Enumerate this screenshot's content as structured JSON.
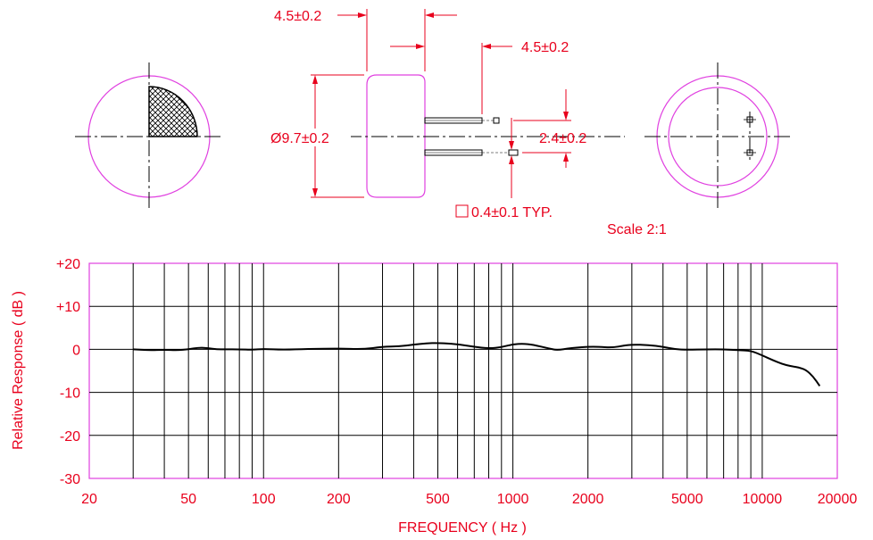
{
  "drawing": {
    "dims": {
      "top_left": "4.5±0.2",
      "top_right": "4.5±0.2",
      "diameter": "Ø9.7±0.2",
      "pin_spacing": "2.4±0.2",
      "pin_size": "0.4±0.1 TYP."
    },
    "scale_note": "Scale 2:1",
    "colors": {
      "dimension": "#e8001c",
      "outline": "#e040e0",
      "line": "#000000"
    }
  },
  "chart_data": {
    "type": "line",
    "title": "",
    "xlabel": "FREQUENCY ( Hz )",
    "ylabel": "Relative Response ( dB )",
    "x_scale": "log",
    "xlim": [
      20,
      20000
    ],
    "ylim": [
      -30,
      20
    ],
    "x_ticks": [
      20,
      50,
      100,
      200,
      500,
      1000,
      2000,
      5000,
      10000,
      20000
    ],
    "x_tick_labels": [
      "20",
      "50",
      "100",
      "200",
      "500",
      "1000",
      "2000",
      "5000",
      "10000",
      "20000"
    ],
    "y_ticks": [
      20,
      10,
      0,
      -10,
      -20,
      -30
    ],
    "y_tick_labels": [
      "+20",
      "+10",
      "0",
      "-10",
      "-20",
      "-30"
    ],
    "grid": true,
    "series": [
      {
        "x": [
          30,
          35,
          40,
          45,
          50,
          55,
          60,
          65,
          70,
          80,
          90,
          100,
          120,
          150,
          200,
          250,
          300,
          350,
          400,
          450,
          500,
          600,
          700,
          800,
          900,
          1000,
          1100,
          1200,
          1400,
          1500,
          1700,
          2000,
          2200,
          2500,
          2800,
          3000,
          3500,
          4000,
          4500,
          5000,
          6000,
          7000,
          8000,
          9000,
          10000,
          11000,
          12000,
          13000,
          14000,
          15000,
          16000,
          17000
        ],
        "y": [
          0,
          -0.2,
          -0.1,
          -0.2,
          0,
          0.4,
          0.3,
          0,
          0,
          0,
          -0.1,
          0.1,
          -0.1,
          0.1,
          0.2,
          0,
          0.6,
          0.7,
          1.1,
          1.4,
          1.5,
          1.2,
          0.6,
          0.2,
          0.5,
          1.2,
          1.3,
          1.1,
          0.2,
          -0.2,
          0.3,
          0.6,
          0.6,
          0.4,
          0.9,
          1.1,
          1.0,
          0.6,
          0,
          -0.1,
          0,
          0,
          -0.2,
          -0.3,
          -1.4,
          -2.5,
          -3.4,
          -3.9,
          -4.2,
          -4.8,
          -6.3,
          -8.5
        ]
      }
    ]
  }
}
